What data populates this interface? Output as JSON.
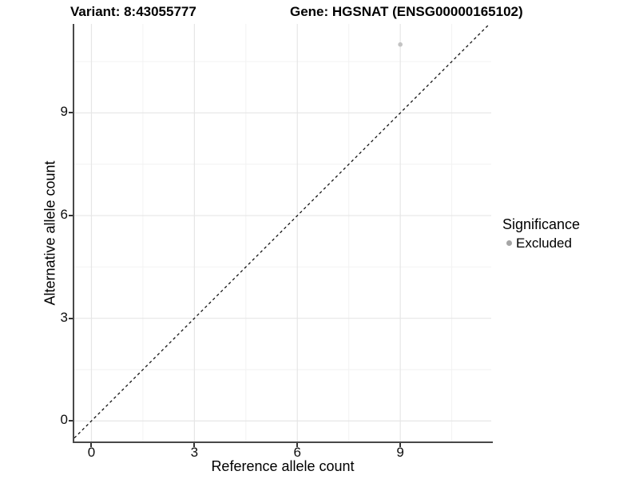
{
  "figure": {
    "title_left": "Variant: 8:43055777",
    "title_right": "Gene: HGSNAT (ENSG00000165102)"
  },
  "legend": {
    "title": "Significance",
    "items": [
      {
        "label": "Excluded",
        "color": "#a5a5a5"
      }
    ]
  },
  "chart_data": {
    "type": "scatter",
    "title": "Variant: 8:43055777 / Gene: HGSNAT (ENSG00000165102)",
    "xlabel": "Reference allele count",
    "ylabel": "Alternative allele count",
    "xticks": [
      0,
      3,
      6,
      9
    ],
    "yticks": [
      0,
      3,
      6,
      9
    ],
    "xminor": [
      1.5,
      4.5,
      7.5,
      10.5
    ],
    "yminor": [
      1.5,
      4.5,
      7.5,
      10.5
    ],
    "xlim": [
      -0.5,
      11.65
    ],
    "ylim": [
      -0.6,
      11.6
    ],
    "grid": true,
    "legend_position": "right",
    "series": [
      {
        "name": "Excluded",
        "color": "#c3c3c3",
        "points": [
          {
            "x": 9,
            "y": 11
          }
        ]
      }
    ],
    "reference_line": {
      "equation": "y = x",
      "style": "dashed",
      "color": "#141414"
    }
  },
  "colors": {
    "background": "#ffffff",
    "grid_major": "#e6e6e6",
    "grid_minor": "#f2f2f2",
    "axis_line": "#484848",
    "tick": "#333333",
    "tick_text": "#0d0d0d",
    "point": "#c3c3c3",
    "legend_dot": "#a5a5a5",
    "dashed_line": "#141414"
  }
}
